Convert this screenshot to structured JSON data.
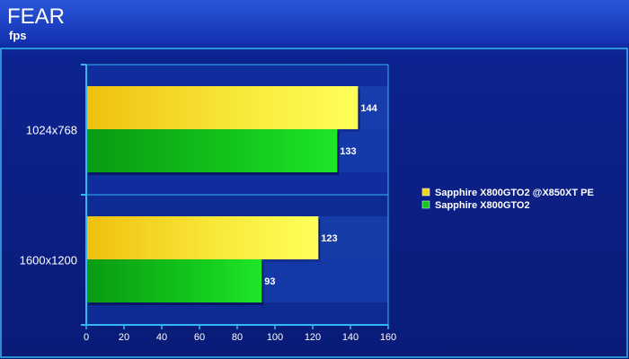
{
  "chart_data": {
    "type": "bar",
    "orientation": "horizontal",
    "title": "FEAR",
    "subtitle": "fps",
    "xlabel": "",
    "ylabel": "",
    "xlim": [
      0,
      160
    ],
    "x_ticks": [
      0,
      20,
      40,
      60,
      80,
      100,
      120,
      140,
      160
    ],
    "categories": [
      "1024x768",
      "1600x1200"
    ],
    "series": [
      {
        "name": "Sapphire X800GTO2 @X850XT PE",
        "color": "#f2d21a",
        "values": [
          144,
          123
        ]
      },
      {
        "name": "Sapphire X800GTO2",
        "color": "#14c81e",
        "values": [
          133,
          93
        ]
      }
    ],
    "legend_position": "right",
    "data_labels": true,
    "grid": false
  }
}
